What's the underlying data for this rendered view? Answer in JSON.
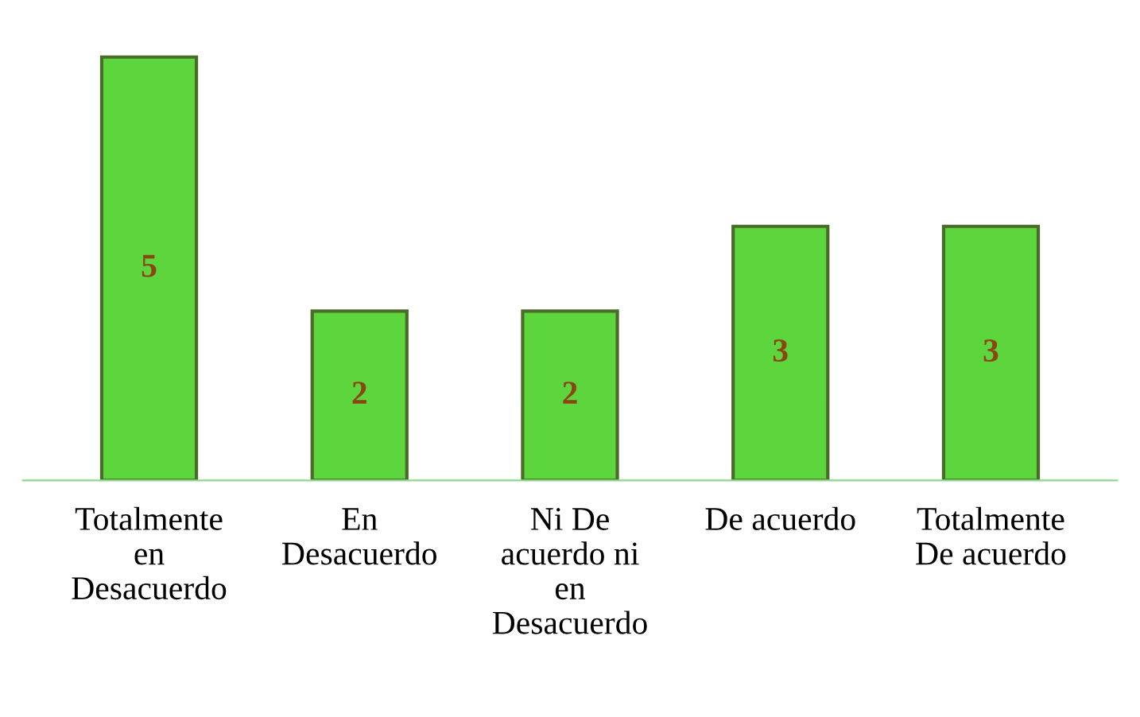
{
  "chart_data": {
    "type": "bar",
    "categories": [
      "Totalmente\nen\nDesacuerdo",
      "En\nDesacuerdo",
      "Ni De\nacuerdo ni\nen\nDesacuerdo",
      "De acuerdo",
      "Totalmente\nDe acuerdo"
    ],
    "values": [
      5,
      2,
      2,
      3,
      3
    ],
    "color": "#5cd63c",
    "data_labels": true,
    "grid": false,
    "legend": false
  }
}
